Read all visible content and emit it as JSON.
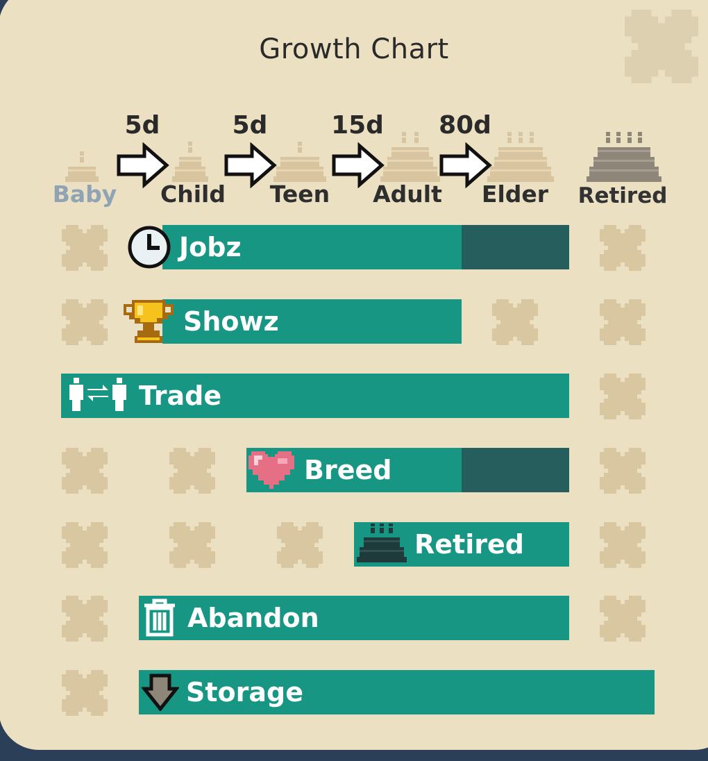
{
  "title": "Growth Chart",
  "close_icon": "close-x-icon",
  "stages": [
    {
      "label": "Baby",
      "highlighted": true
    },
    {
      "label": "Child",
      "highlighted": false
    },
    {
      "label": "Teen",
      "highlighted": false
    },
    {
      "label": "Adult",
      "highlighted": false
    },
    {
      "label": "Elder",
      "highlighted": false
    },
    {
      "label": "Retired",
      "highlighted": false
    }
  ],
  "durations": [
    "5d",
    "5d",
    "15d",
    "80d"
  ],
  "rows": [
    {
      "label": "Jobz",
      "icon": "clock-icon",
      "available": [
        "Child",
        "Teen",
        "Adult",
        "Elder"
      ],
      "dark_stages": [
        "Elder"
      ]
    },
    {
      "label": "Showz",
      "icon": "trophy-icon",
      "available": [
        "Child",
        "Teen",
        "Adult"
      ],
      "dark_stages": []
    },
    {
      "label": "Trade",
      "icon": "trade-icon",
      "available": [
        "Baby",
        "Child",
        "Teen",
        "Adult",
        "Elder"
      ],
      "dark_stages": []
    },
    {
      "label": "Breed",
      "icon": "heart-icon",
      "available": [
        "Teen",
        "Adult",
        "Elder"
      ],
      "dark_stages": [
        "Elder"
      ]
    },
    {
      "label": "Retired",
      "icon": "retired-cake-icon",
      "available": [
        "Adult",
        "Elder"
      ],
      "dark_stages": []
    },
    {
      "label": "Abandon",
      "icon": "trash-icon",
      "available": [
        "Child",
        "Teen",
        "Adult",
        "Elder"
      ],
      "dark_stages": []
    },
    {
      "label": "Storage",
      "icon": "storage-arrow-icon",
      "available": [
        "Child",
        "Teen",
        "Adult",
        "Elder",
        "Retired"
      ],
      "dark_stages": []
    }
  ],
  "colors": {
    "panel": "#ece0c3",
    "bar": "#179684",
    "bar_dark": "#255e5c",
    "cross": "#d8c7a0",
    "cake_faded": "#d8c5a0",
    "cake_active": "#8e8678",
    "baby_label": "#8fa3b4"
  }
}
